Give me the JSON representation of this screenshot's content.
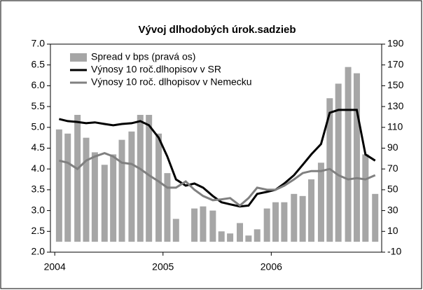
{
  "chart_data": {
    "type": "bar_line",
    "title": "Vývoj dlhodobých úrok.sadzieb",
    "x": [
      2004.04,
      2004.12,
      2004.21,
      2004.29,
      2004.37,
      2004.46,
      2004.54,
      2004.62,
      2004.71,
      2004.79,
      2004.87,
      2004.96,
      2005.04,
      2005.12,
      2005.21,
      2005.29,
      2005.37,
      2005.46,
      2005.54,
      2005.62,
      2005.71,
      2005.79,
      2005.87,
      2005.96,
      2006.04,
      2006.12,
      2006.21,
      2006.29,
      2006.37,
      2006.46,
      2006.54,
      2006.62,
      2006.71,
      2006.79,
      2006.87,
      2006.96
    ],
    "xlim": [
      2003.96,
      2007.02
    ],
    "xticks": [
      2004,
      2005,
      2006
    ],
    "ylim": [
      2.0,
      7.0
    ],
    "yticks": [
      {
        "value": 2.0,
        "label": "2.0"
      },
      2.5,
      {
        "value": 3.0,
        "label": "3.0"
      },
      3.5,
      {
        "value": 4.0,
        "label": "4.0"
      },
      4.5,
      {
        "value": 5.0,
        "label": "5.0"
      },
      5.5,
      {
        "value": 6.0,
        "label": "6.0"
      },
      6.5,
      {
        "value": 7.0,
        "label": "7.0"
      }
    ],
    "y2lim": [
      -10,
      190
    ],
    "y2ticks": [
      -10,
      10,
      30,
      50,
      70,
      90,
      110,
      130,
      150,
      170,
      190
    ],
    "legend": "upper left",
    "series": [
      {
        "name": "Spread v bps (pravá os)",
        "kind": "bar",
        "axis": "y2",
        "color": "#a6a6a6",
        "values": [
          108,
          104,
          122,
          100,
          86,
          74,
          84,
          98,
          106,
          122,
          122,
          104,
          66,
          22,
          null,
          32,
          34,
          30,
          10,
          8,
          18,
          6,
          12,
          32,
          38,
          38,
          46,
          44,
          60,
          76,
          138,
          152,
          168,
          162,
          84,
          46
        ]
      },
      {
        "name": "Výnosy 10 roč.dlhopisov v SR",
        "kind": "line",
        "color": "#000000",
        "values": [
          5.2,
          5.15,
          5.13,
          5.1,
          5.12,
          5.08,
          5.05,
          5.08,
          5.1,
          5.15,
          5.05,
          4.75,
          4.3,
          3.75,
          3.6,
          3.65,
          3.55,
          3.35,
          3.2,
          3.15,
          3.1,
          3.12,
          3.4,
          3.45,
          3.5,
          3.65,
          3.85,
          4.1,
          4.35,
          4.6,
          5.35,
          5.42,
          5.42,
          5.42,
          4.35,
          4.2
        ]
      },
      {
        "name": "Výnosy 10 roč. dlhopisov v Nemecku",
        "kind": "line",
        "color": "#808080",
        "values": [
          4.2,
          4.15,
          4.0,
          4.2,
          4.3,
          4.38,
          4.3,
          4.15,
          4.12,
          4.0,
          3.85,
          3.7,
          3.55,
          3.55,
          3.7,
          3.5,
          3.35,
          3.25,
          3.27,
          3.3,
          3.12,
          3.3,
          3.55,
          3.5,
          3.5,
          3.6,
          3.75,
          3.9,
          3.95,
          3.95,
          4.0,
          3.85,
          3.75,
          3.78,
          3.75,
          3.85
        ]
      }
    ]
  }
}
